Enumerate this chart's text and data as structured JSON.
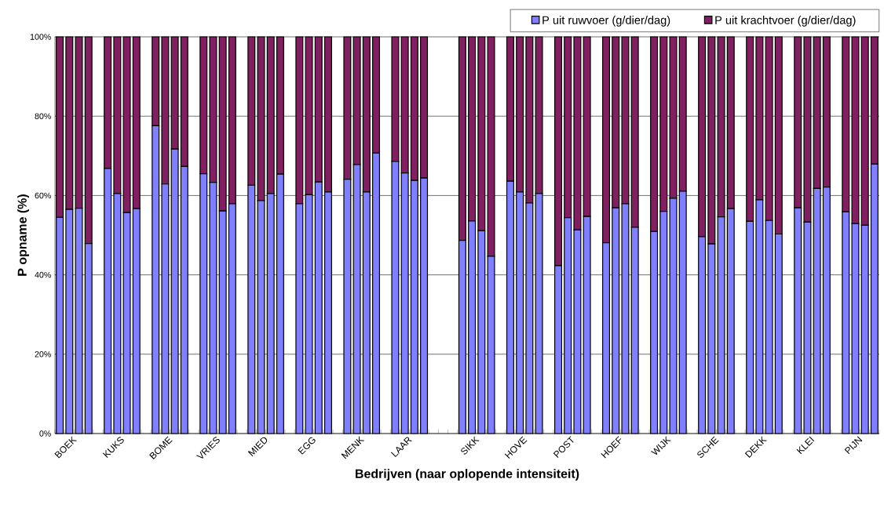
{
  "chart_data": {
    "type": "bar",
    "stacked": true,
    "xlabel": "Bedrijven (naar oplopende intensiteit)",
    "ylabel": "P opname (%)",
    "categories": [
      null,
      "BOEK",
      null,
      null,
      null,
      null,
      "KUKS",
      null,
      null,
      null,
      null,
      "BOME",
      null,
      null,
      null,
      null,
      "VRIES",
      null,
      null,
      null,
      null,
      "MIED",
      null,
      null,
      null,
      null,
      "EGG",
      null,
      null,
      null,
      null,
      "MENK",
      null,
      null,
      null,
      null,
      "LAAR",
      null,
      null,
      null,
      null,
      null,
      null,
      "SIKK",
      null,
      null,
      null,
      null,
      "HOVE",
      null,
      null,
      null,
      null,
      "POST",
      null,
      null,
      null,
      null,
      "HOEF",
      null,
      null,
      null,
      null,
      "WIJK",
      null,
      null,
      null,
      null,
      "SCHE",
      null,
      null,
      null,
      null,
      "DEKK",
      null,
      null,
      null,
      null,
      "KLEI",
      null,
      null,
      null,
      null,
      "PIJN",
      null,
      null
    ],
    "series": [
      {
        "name": "P uit ruwvoer (g/dier/dag)",
        "color": "#8080ff",
        "values": [
          54.5,
          56.5,
          56.8,
          47.9,
          null,
          66.8,
          60.5,
          55.7,
          56.7,
          null,
          77.6,
          62.9,
          71.7,
          67.3,
          null,
          65.5,
          63.3,
          56.1,
          57.9,
          null,
          62.6,
          58.7,
          60.5,
          65.4,
          null,
          57.9,
          60.2,
          63.4,
          60.9,
          null,
          64.1,
          67.8,
          60.9,
          70.7,
          null,
          68.6,
          65.7,
          63.8,
          64.4,
          null,
          null,
          null,
          48.7,
          53.6,
          51.1,
          44.7,
          null,
          63.6,
          60.9,
          58.1,
          60.5,
          null,
          42.3,
          54.4,
          51.3,
          54.7,
          null,
          48.1,
          56.9,
          57.9,
          52.0,
          null,
          50.9,
          56.0,
          59.3,
          61.1,
          null,
          49.6,
          47.8,
          54.6,
          56.7,
          null,
          53.5,
          58.9,
          53.7,
          50.3,
          null,
          56.9,
          53.3,
          61.8,
          62.1,
          null,
          55.9,
          52.9,
          52.5,
          67.9
        ]
      },
      {
        "name": "P uit krachtvoer (g/dier/dag)",
        "color": "#802060",
        "values": [
          45.5,
          43.5,
          43.2,
          52.1,
          null,
          33.2,
          39.5,
          44.3,
          43.3,
          null,
          22.4,
          37.1,
          28.3,
          32.7,
          null,
          34.5,
          36.7,
          43.9,
          42.1,
          null,
          37.4,
          41.3,
          39.5,
          34.6,
          null,
          42.1,
          39.8,
          36.6,
          39.1,
          null,
          35.9,
          32.2,
          39.1,
          29.3,
          null,
          31.4,
          34.3,
          36.2,
          35.6,
          null,
          null,
          null,
          51.3,
          46.4,
          48.9,
          55.3,
          null,
          36.4,
          39.1,
          41.9,
          39.5,
          null,
          57.7,
          45.6,
          48.7,
          45.3,
          null,
          51.9,
          43.1,
          42.1,
          48.0,
          null,
          49.1,
          44.0,
          40.7,
          38.9,
          null,
          50.4,
          52.2,
          45.4,
          43.3,
          null,
          46.5,
          41.1,
          46.3,
          49.7,
          null,
          43.1,
          46.7,
          38.2,
          37.9,
          null,
          44.1,
          47.1,
          47.5,
          32.1
        ]
      }
    ],
    "ylim": [
      0,
      100
    ],
    "yticks": [
      {
        "value": 0,
        "label": "0%"
      },
      {
        "value": 20,
        "label": "20%"
      },
      {
        "value": 40,
        "label": "40%"
      },
      {
        "value": 60,
        "label": "60%"
      },
      {
        "value": 80,
        "label": "80%"
      },
      {
        "value": 100,
        "label": "100%"
      }
    ],
    "grid": "y",
    "legend": "top right"
  }
}
